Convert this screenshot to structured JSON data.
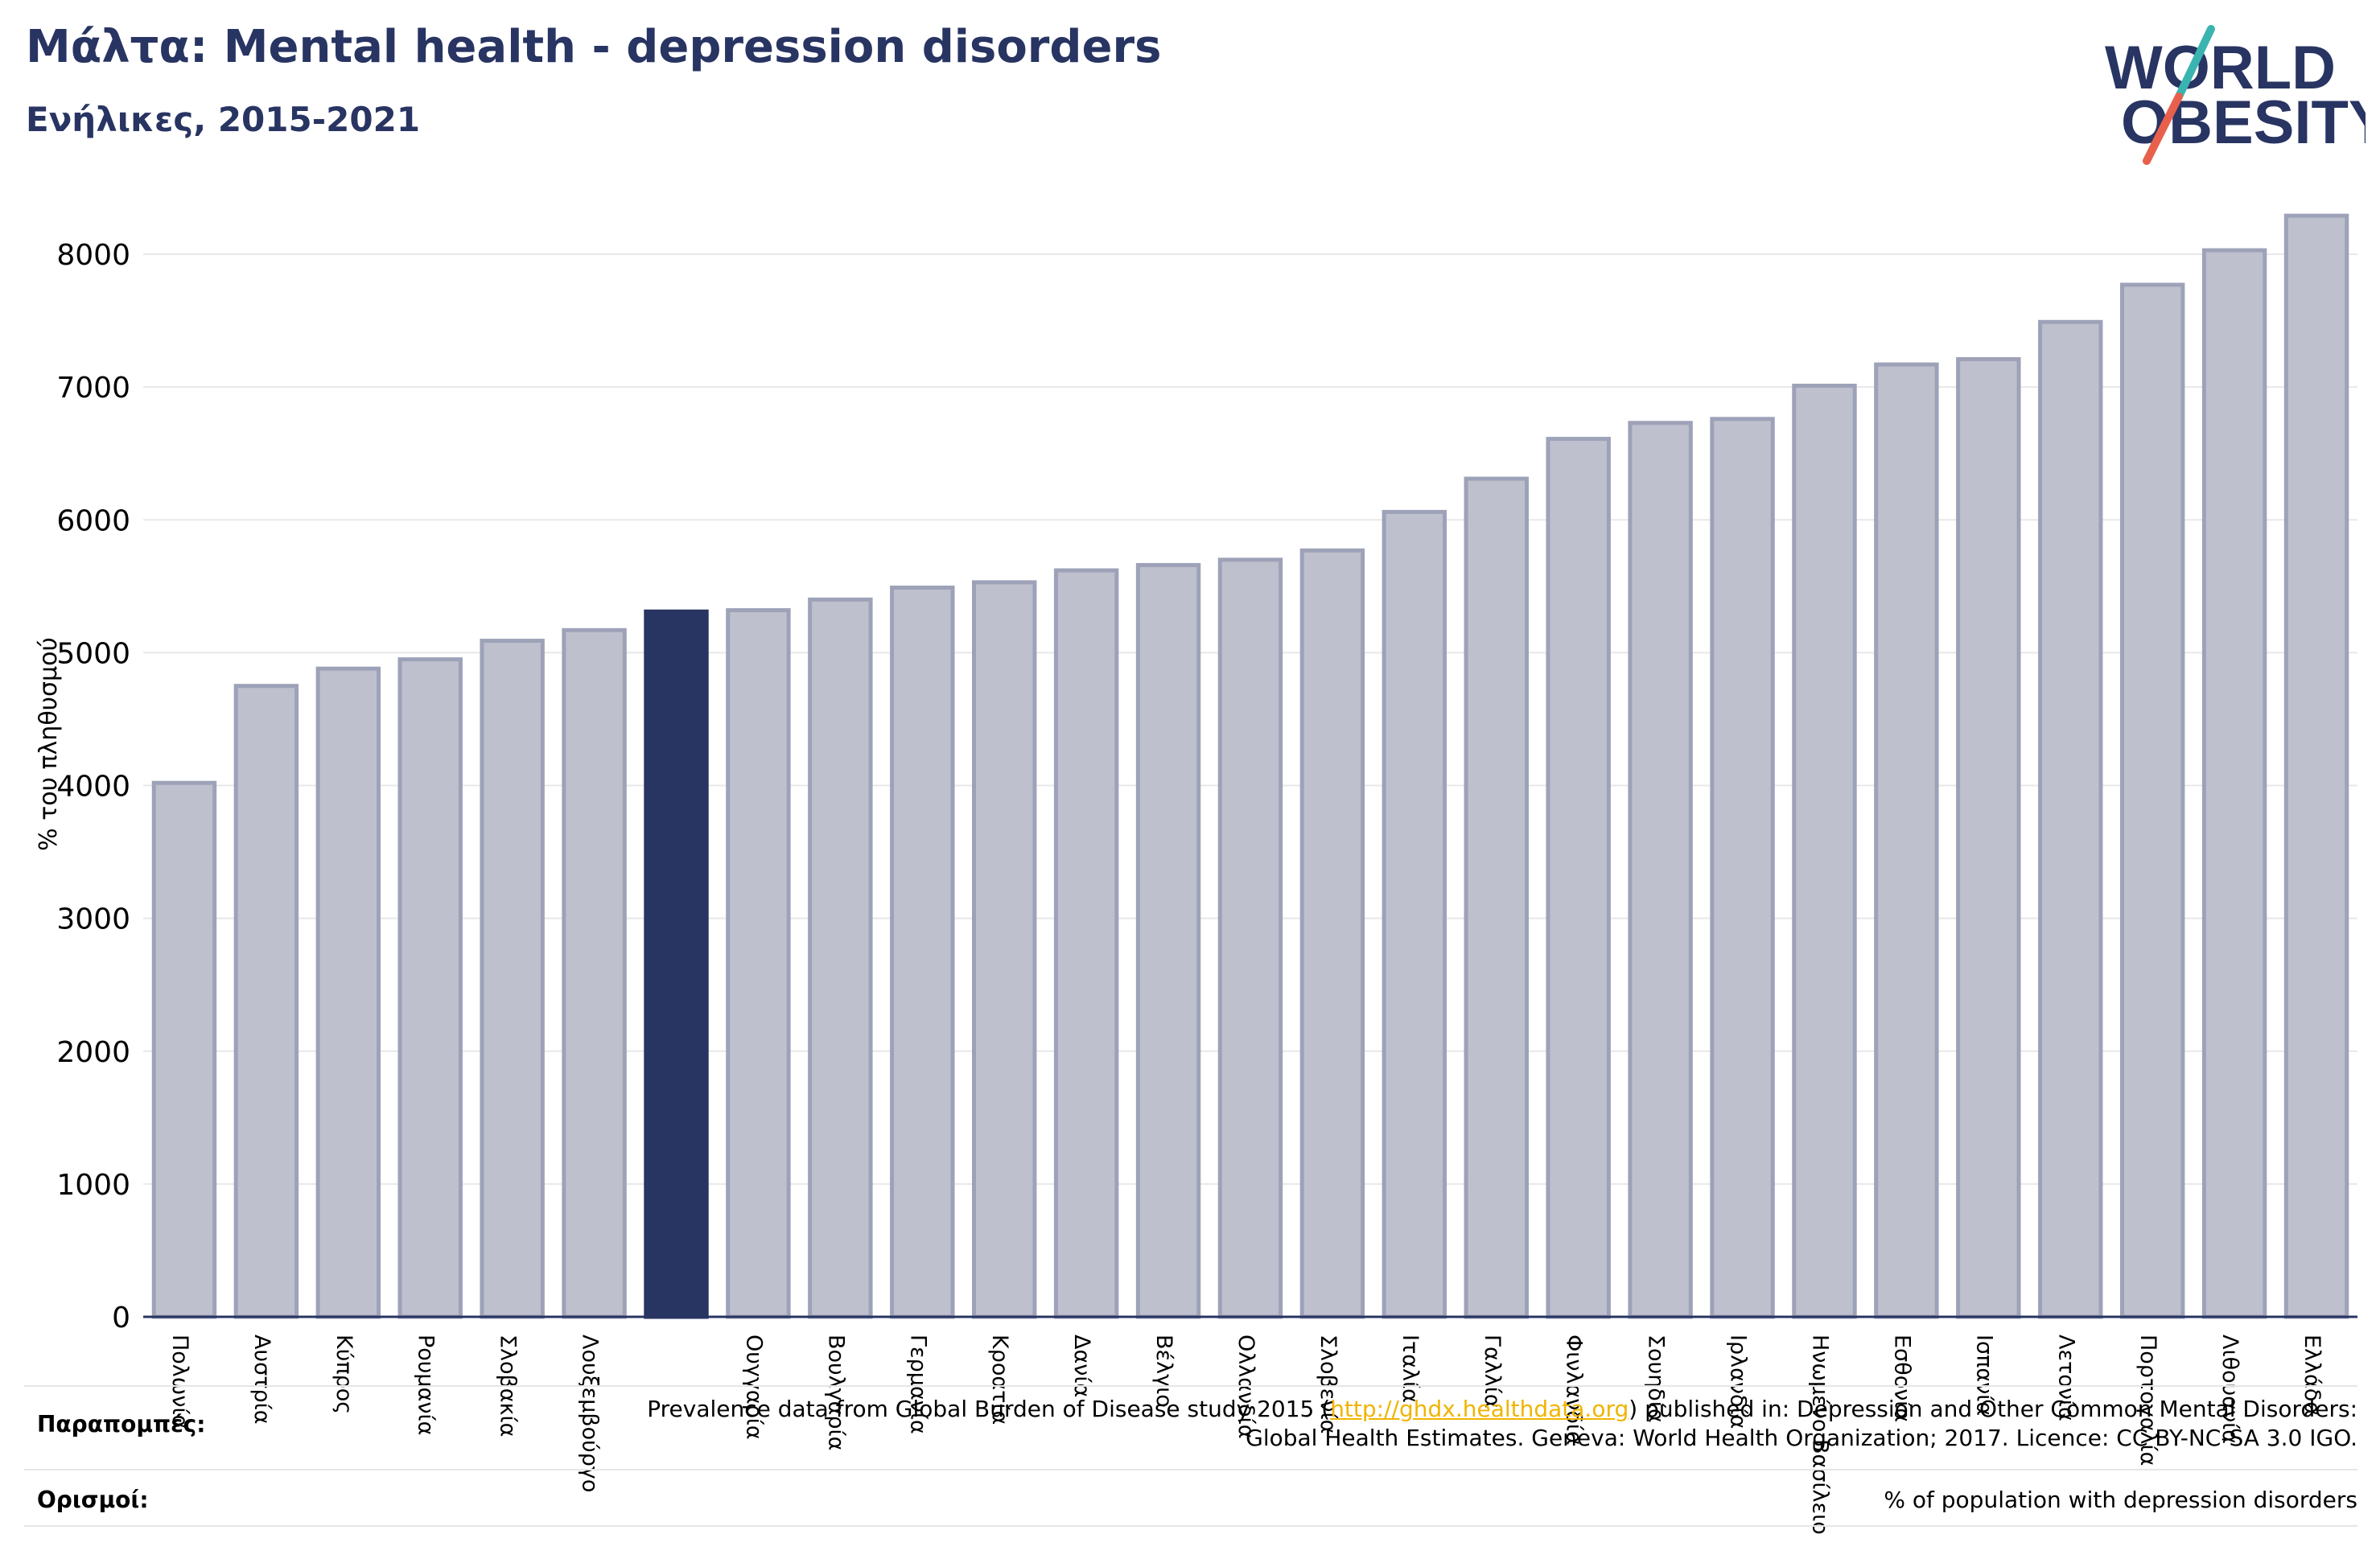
{
  "header": {
    "title": "Μάλτα: Mental health - depression disorders",
    "subtitle": "Ενήλικες, 2015-2021"
  },
  "logo": {
    "line1": "WORLD",
    "line2": "OBESITY",
    "icon": "world-obesity-logo",
    "colors": {
      "text": "#283462",
      "slash_top": "#3ab4b0",
      "slash_bottom": "#e8604c"
    }
  },
  "colors": {
    "bar": "#bec0cd",
    "bar_border": "#9ea2b8",
    "highlight": "#283462",
    "grid": "#e8e8e8",
    "axis": "#283462"
  },
  "chart_data": {
    "type": "bar",
    "ylabel": "% του πληθυσμού",
    "ylim": [
      0,
      8400
    ],
    "yticks": [
      0,
      1000,
      2000,
      3000,
      4000,
      5000,
      6000,
      7000,
      8000
    ],
    "grid": true,
    "highlight_index": 6,
    "categories": [
      "Πολωνία",
      "Αυστρία",
      "Κύπρος",
      "Ρουμανία",
      "Σλοβακία",
      "Λουξεμβούργο",
      "",
      "Ουγγαρία",
      "Βουλγαρία",
      "Γερμανία",
      "Κροατία",
      "Δανία",
      "Βέλγιο",
      "Ολλανδία",
      "Σλοβενία",
      "Ιταλία",
      "Γαλλία",
      "Φινλανδία",
      "Σουηδία",
      "Ιρλανδία",
      "Ηνωμένο Βασίλειο",
      "Εσθονία",
      "Ισπανία",
      "Λετονία",
      "Πορτογαλία",
      "Λιθουανία",
      "Ελλάδα"
    ],
    "values": [
      4020,
      4750,
      4880,
      4950,
      5090,
      5170,
      5310,
      5320,
      5400,
      5490,
      5530,
      5620,
      5660,
      5700,
      5770,
      6060,
      6310,
      6610,
      6730,
      6760,
      7010,
      7170,
      7210,
      7490,
      7770,
      8030,
      8290
    ]
  },
  "footer": {
    "references_label": "Παραπομπές:",
    "references_pre": "Prevalence data from Global Burden of Disease study 2015 (",
    "references_link": "http://ghdx.healthdata.org",
    "references_post": ") published in: Depression and Other Common Mental Disorders: Global Health Estimates. Geneva: World Health Organization; 2017. Licence: CC BY-NC-SA 3.0 IGO.",
    "definitions_label": "Ορισμοί:",
    "definitions_text": "% of population with depression disorders"
  }
}
